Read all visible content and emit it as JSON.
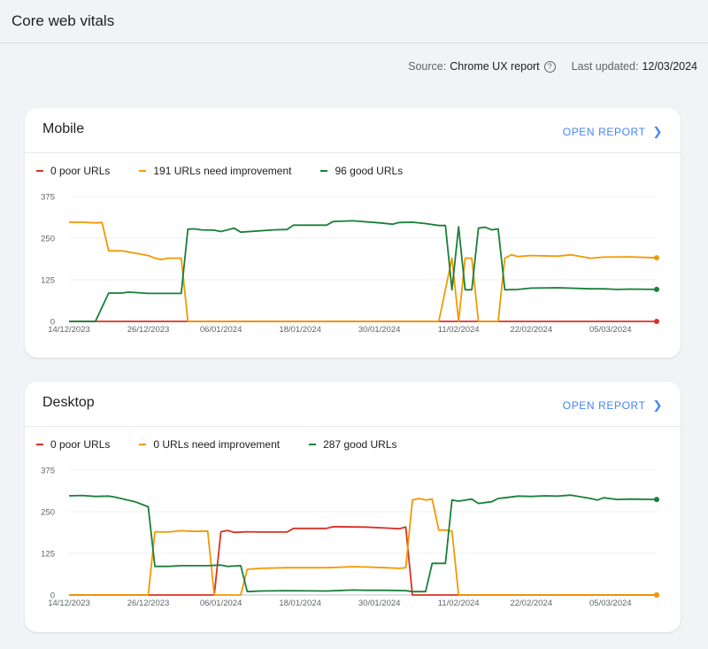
{
  "header": {
    "title": "Core web vitals"
  },
  "meta": {
    "source_label": "Source:",
    "source_value": "Chrome UX report",
    "updated_label": "Last updated:",
    "updated_value": "12/03/2024"
  },
  "colors": {
    "poor": "#d93025",
    "needs_improvement": "#f29900",
    "good": "#188038",
    "accent": "#4285f4"
  },
  "cards": [
    {
      "title": "Mobile",
      "open_report_label": "OPEN REPORT",
      "legend": [
        {
          "key": "poor",
          "label": "0 poor URLs"
        },
        {
          "key": "needs_improvement",
          "label": "191 URLs need improvement"
        },
        {
          "key": "good",
          "label": "96 good URLs"
        }
      ]
    },
    {
      "title": "Desktop",
      "open_report_label": "OPEN REPORT",
      "legend": [
        {
          "key": "poor",
          "label": "0 poor URLs"
        },
        {
          "key": "needs_improvement",
          "label": "0 URLs need improvement"
        },
        {
          "key": "good",
          "label": "287 good URLs"
        }
      ]
    }
  ],
  "chart_data": [
    {
      "type": "line",
      "title": "Mobile",
      "x_ticks": [
        "14/12/2023",
        "26/12/2023",
        "06/01/2024",
        "18/01/2024",
        "30/01/2024",
        "11/02/2024",
        "22/02/2024",
        "05/03/2024"
      ],
      "y_ticks": [
        0,
        125,
        250,
        375
      ],
      "ylim": [
        0,
        375
      ],
      "grid": true,
      "legend_placement": "top-left",
      "series": [
        {
          "name": "0 poor URLs",
          "key": "poor",
          "points": [
            [
              "2023-12-14",
              0
            ],
            [
              "2024-03-12",
              0
            ]
          ]
        },
        {
          "name": "191 URLs need improvement",
          "key": "needs_improvement",
          "points": [
            [
              "2023-12-14",
              298
            ],
            [
              "2023-12-16",
              298
            ],
            [
              "2023-12-18",
              296
            ],
            [
              "2023-12-19",
              297
            ],
            [
              "2023-12-20",
              212
            ],
            [
              "2023-12-22",
              212
            ],
            [
              "2023-12-24",
              205
            ],
            [
              "2023-12-26",
              198
            ],
            [
              "2023-12-27",
              190
            ],
            [
              "2023-12-28",
              186
            ],
            [
              "2023-12-29",
              190
            ],
            [
              "2023-12-31",
              190
            ],
            [
              "2024-01-01",
              0
            ],
            [
              "2024-02-08",
              0
            ],
            [
              "2024-02-10",
              190
            ],
            [
              "2024-02-11",
              0
            ],
            [
              "2024-02-12",
              190
            ],
            [
              "2024-02-13",
              190
            ],
            [
              "2024-02-14",
              0
            ],
            [
              "2024-02-17",
              0
            ],
            [
              "2024-02-18",
              190
            ],
            [
              "2024-02-19",
              200
            ],
            [
              "2024-02-20",
              195
            ],
            [
              "2024-02-22",
              198
            ],
            [
              "2024-02-26",
              196
            ],
            [
              "2024-02-28",
              200
            ],
            [
              "2024-03-02",
              190
            ],
            [
              "2024-03-04",
              193
            ],
            [
              "2024-03-08",
              194
            ],
            [
              "2024-03-12",
              191
            ]
          ]
        },
        {
          "name": "96 good URLs",
          "key": "good",
          "points": [
            [
              "2023-12-14",
              0
            ],
            [
              "2023-12-18",
              0
            ],
            [
              "2023-12-20",
              85
            ],
            [
              "2023-12-22",
              85
            ],
            [
              "2023-12-23",
              88
            ],
            [
              "2023-12-26",
              84
            ],
            [
              "2023-12-31",
              84
            ],
            [
              "2024-01-01",
              277
            ],
            [
              "2024-01-02",
              278
            ],
            [
              "2024-01-03",
              275
            ],
            [
              "2024-01-05",
              274
            ],
            [
              "2024-01-06",
              270
            ],
            [
              "2024-01-08",
              280
            ],
            [
              "2024-01-09",
              268
            ],
            [
              "2024-01-14",
              275
            ],
            [
              "2024-01-16",
              276
            ],
            [
              "2024-01-17",
              289
            ],
            [
              "2024-01-22",
              289
            ],
            [
              "2024-01-23",
              300
            ],
            [
              "2024-01-26",
              302
            ],
            [
              "2024-01-30",
              296
            ],
            [
              "2024-02-01",
              292
            ],
            [
              "2024-02-02",
              297
            ],
            [
              "2024-02-04",
              298
            ],
            [
              "2024-02-06",
              294
            ],
            [
              "2024-02-08",
              288
            ],
            [
              "2024-02-09",
              288
            ],
            [
              "2024-02-10",
              95
            ],
            [
              "2024-02-11",
              284
            ],
            [
              "2024-02-12",
              95
            ],
            [
              "2024-02-13",
              95
            ],
            [
              "2024-02-14",
              280
            ],
            [
              "2024-02-15",
              283
            ],
            [
              "2024-02-16",
              275
            ],
            [
              "2024-02-17",
              278
            ],
            [
              "2024-02-18",
              95
            ],
            [
              "2024-02-20",
              96
            ],
            [
              "2024-02-22",
              100
            ],
            [
              "2024-02-26",
              101
            ],
            [
              "2024-03-02",
              98
            ],
            [
              "2024-03-04",
              98
            ],
            [
              "2024-03-06",
              96
            ],
            [
              "2024-03-08",
              97
            ],
            [
              "2024-03-12",
              96
            ]
          ]
        }
      ]
    },
    {
      "type": "line",
      "title": "Desktop",
      "x_ticks": [
        "14/12/2023",
        "26/12/2023",
        "06/01/2024",
        "18/01/2024",
        "30/01/2024",
        "11/02/2024",
        "22/02/2024",
        "05/03/2024"
      ],
      "y_ticks": [
        0,
        125,
        250,
        375
      ],
      "ylim": [
        0,
        375
      ],
      "grid": true,
      "legend_placement": "top-left",
      "series": [
        {
          "name": "0 poor URLs",
          "key": "poor",
          "points": [
            [
              "2023-12-14",
              0
            ],
            [
              "2024-01-05",
              0
            ],
            [
              "2024-01-06",
              190
            ],
            [
              "2024-01-07",
              194
            ],
            [
              "2024-01-08",
              188
            ],
            [
              "2024-01-10",
              190
            ],
            [
              "2024-01-12",
              189
            ],
            [
              "2024-01-16",
              189
            ],
            [
              "2024-01-17",
              200
            ],
            [
              "2024-01-22",
              200
            ],
            [
              "2024-01-23",
              205
            ],
            [
              "2024-01-28",
              204
            ],
            [
              "2024-01-31",
              201
            ],
            [
              "2024-02-02",
              199
            ],
            [
              "2024-02-03",
              204
            ],
            [
              "2024-02-04",
              0
            ],
            [
              "2024-03-12",
              0
            ]
          ]
        },
        {
          "name": "0 URLs need improvement",
          "key": "needs_improvement",
          "points": [
            [
              "2023-12-14",
              0
            ],
            [
              "2023-12-26",
              0
            ],
            [
              "2023-12-27",
              190
            ],
            [
              "2023-12-29",
              189
            ],
            [
              "2023-12-31",
              193
            ],
            [
              "2024-01-02",
              191
            ],
            [
              "2024-01-04",
              192
            ],
            [
              "2024-01-05",
              0
            ],
            [
              "2024-01-09",
              0
            ],
            [
              "2024-01-10",
              77
            ],
            [
              "2024-01-12",
              80
            ],
            [
              "2024-01-16",
              82
            ],
            [
              "2024-01-22",
              82
            ],
            [
              "2024-01-26",
              85
            ],
            [
              "2024-01-28",
              84
            ],
            [
              "2024-01-31",
              82
            ],
            [
              "2024-02-02",
              80
            ],
            [
              "2024-02-03",
              82
            ],
            [
              "2024-02-04",
              285
            ],
            [
              "2024-02-05",
              290
            ],
            [
              "2024-02-06",
              285
            ],
            [
              "2024-02-07",
              288
            ],
            [
              "2024-02-08",
              195
            ],
            [
              "2024-02-09",
              195
            ],
            [
              "2024-02-10",
              192
            ],
            [
              "2024-02-11",
              0
            ],
            [
              "2024-03-12",
              0
            ]
          ]
        },
        {
          "name": "287 good URLs",
          "key": "good",
          "points": [
            [
              "2023-12-14",
              298
            ],
            [
              "2023-12-16",
              299
            ],
            [
              "2023-12-18",
              296
            ],
            [
              "2023-12-20",
              297
            ],
            [
              "2023-12-21",
              294
            ],
            [
              "2023-12-24",
              280
            ],
            [
              "2023-12-26",
              265
            ],
            [
              "2023-12-27",
              86
            ],
            [
              "2023-12-29",
              86
            ],
            [
              "2023-12-31",
              88
            ],
            [
              "2024-01-02",
              88
            ],
            [
              "2024-01-04",
              88
            ],
            [
              "2024-01-06",
              90
            ],
            [
              "2024-01-07",
              86
            ],
            [
              "2024-01-09",
              88
            ],
            [
              "2024-01-10",
              10
            ],
            [
              "2024-01-12",
              12
            ],
            [
              "2024-01-16",
              13
            ],
            [
              "2024-01-22",
              12
            ],
            [
              "2024-01-26",
              15
            ],
            [
              "2024-01-28",
              14
            ],
            [
              "2024-01-31",
              14
            ],
            [
              "2024-02-03",
              13
            ],
            [
              "2024-02-04",
              10
            ],
            [
              "2024-02-06",
              10
            ],
            [
              "2024-02-07",
              95
            ],
            [
              "2024-02-09",
              95
            ],
            [
              "2024-02-10",
              285
            ],
            [
              "2024-02-11",
              282
            ],
            [
              "2024-02-13",
              288
            ],
            [
              "2024-02-14",
              275
            ],
            [
              "2024-02-16",
              280
            ],
            [
              "2024-02-17",
              290
            ],
            [
              "2024-02-18",
              292
            ],
            [
              "2024-02-20",
              297
            ],
            [
              "2024-02-22",
              296
            ],
            [
              "2024-02-24",
              298
            ],
            [
              "2024-02-26",
              297
            ],
            [
              "2024-02-28",
              300
            ],
            [
              "2024-03-02",
              290
            ],
            [
              "2024-03-03",
              285
            ],
            [
              "2024-03-04",
              292
            ],
            [
              "2024-03-06",
              287
            ],
            [
              "2024-03-08",
              288
            ],
            [
              "2024-03-12",
              287
            ]
          ]
        }
      ]
    }
  ]
}
